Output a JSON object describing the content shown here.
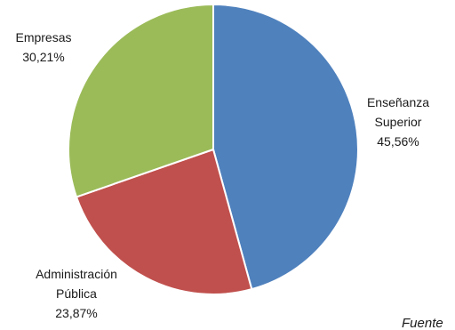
{
  "chart_data": {
    "type": "pie",
    "title": "",
    "slices": [
      {
        "label_lines": [
          "Enseñanza",
          "Superior"
        ],
        "value": 45.56,
        "value_label": "45,56%",
        "color": "#4f81bd"
      },
      {
        "label_lines": [
          "Administración",
          "Pública"
        ],
        "value": 23.87,
        "value_label": "23,87%",
        "color": "#c0504d"
      },
      {
        "label_lines": [
          "Empresas"
        ],
        "value": 30.21,
        "value_label": "30,21%",
        "color": "#9bbb59"
      }
    ],
    "start_angle_deg": 0,
    "direction": "clockwise",
    "legend": "none"
  },
  "source_note": "Fuente"
}
